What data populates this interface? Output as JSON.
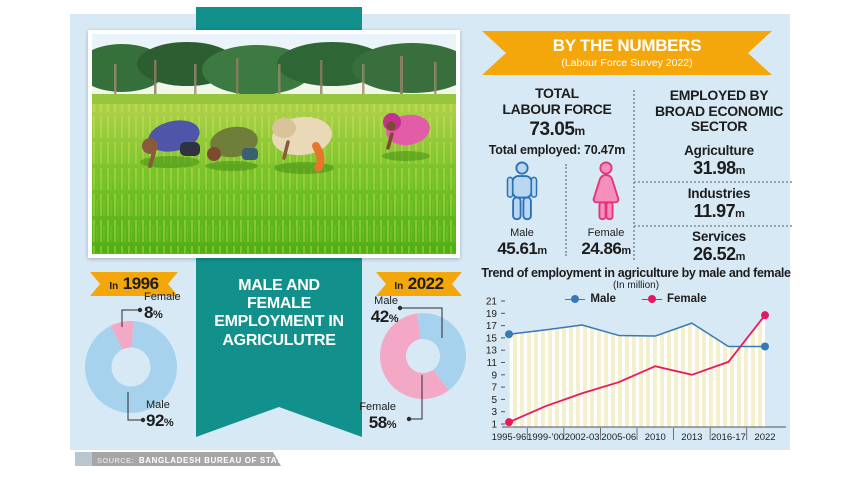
{
  "header": {
    "banner_title": "BY THE NUMBERS",
    "banner_subtitle": "(Labour Force Survey 2022)"
  },
  "ribbon": {
    "lines": [
      "MALE AND",
      "FEMALE",
      "EMPLOYMENT IN",
      "AGRICULUTRE"
    ]
  },
  "totals": {
    "label_line1": "TOTAL",
    "label_line2": "LABOUR FORCE",
    "value": "73.05",
    "unit": "m",
    "employed_line": "Total employed: 70.47m",
    "male": {
      "label": "Male",
      "value": "45.61",
      "unit": "m"
    },
    "female": {
      "label": "Female",
      "value": "24.86",
      "unit": "m"
    }
  },
  "sector": {
    "header_lines": [
      "EMPLOYED BY",
      "BROAD ECONOMIC",
      "SECTOR"
    ],
    "items": [
      {
        "label": "Agriculture",
        "value": "31.98",
        "unit": "m"
      },
      {
        "label": "Industries",
        "value": "11.97",
        "unit": "m"
      },
      {
        "label": "Services",
        "value": "26.52",
        "unit": "m"
      }
    ]
  },
  "banners": {
    "y1996": {
      "prefix": "In",
      "year": "1996"
    },
    "y2022": {
      "prefix": "In",
      "year": "2022"
    }
  },
  "source": {
    "label": "SOURCE:",
    "text": "BANGLADESH BUREAU OF STATISTICS"
  },
  "colors": {
    "canvas": "#d8e9f6",
    "teal": "#12908c",
    "yellow": "#f3a70b",
    "donut_blue": "#a7d2ee",
    "donut_pink": "#f3a8c5",
    "male_line": "#3579b8",
    "female_line": "#e8185e",
    "stripe_fill": "#f4efcd",
    "source_gray": "#a6a6a6"
  },
  "chart_data": [
    {
      "id": "donut-1996",
      "type": "pie",
      "donut": true,
      "title": "In 1996",
      "unit": "%",
      "start_angle": -26,
      "slices": [
        {
          "label": "Female",
          "value": 8,
          "color": "#f3a8c5"
        },
        {
          "label": "Male",
          "value": 92,
          "color": "#a7d2ee"
        }
      ]
    },
    {
      "id": "donut-2022",
      "type": "pie",
      "donut": true,
      "title": "In 2022",
      "unit": "%",
      "start_angle": -8,
      "slices": [
        {
          "label": "Male",
          "value": 42,
          "color": "#a7d2ee"
        },
        {
          "label": "Female",
          "value": 58,
          "color": "#f3a8c5"
        }
      ]
    },
    {
      "id": "trend-line",
      "type": "line",
      "title": "Trend of employment in agriculture by male and female",
      "subtitle": "(In million)",
      "categories": [
        "1995-96",
        "1999-’00",
        "2002-03",
        "2005-06",
        "2010",
        "2013",
        "2016-17",
        "2022"
      ],
      "series": [
        {
          "name": "Male",
          "color": "#3579b8",
          "values": [
            15.6,
            16.3,
            17.1,
            15.4,
            15.3,
            17.4,
            13.6,
            13.6
          ]
        },
        {
          "name": "Female",
          "color": "#e8185e",
          "values": [
            1.3,
            3.9,
            6.0,
            7.8,
            10.4,
            9.0,
            11.1,
            18.7
          ]
        }
      ],
      "ylim": [
        1,
        21
      ],
      "yticks": [
        21,
        19,
        17,
        15,
        13,
        11,
        9,
        7,
        5,
        3,
        1
      ],
      "grid": false,
      "legend_position": "top",
      "area_fill": "vertical pale-yellow stripes under upper envelope"
    }
  ]
}
